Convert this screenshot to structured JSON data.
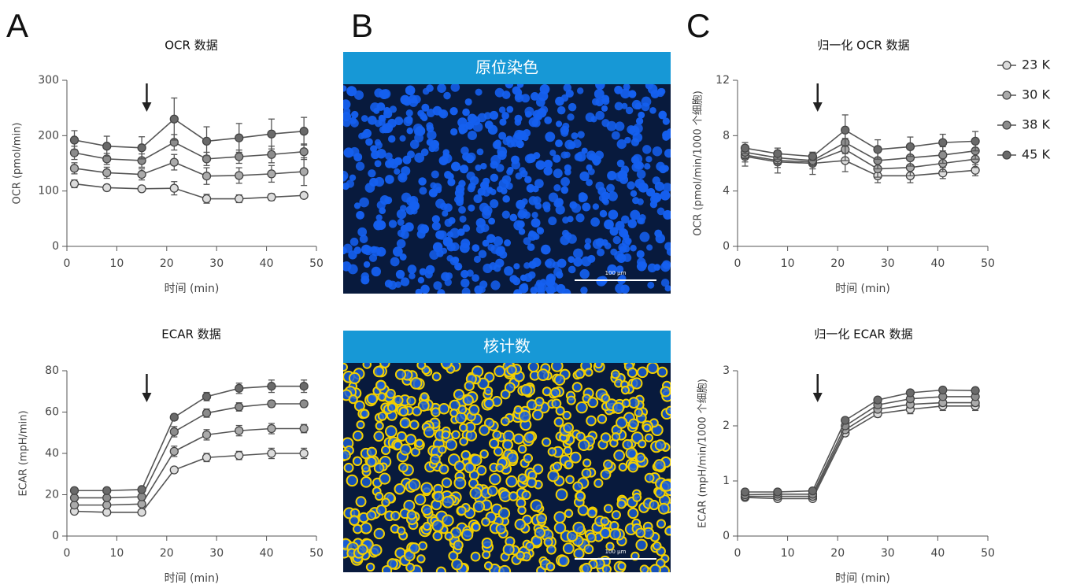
{
  "panels": [
    "A",
    "B",
    "C"
  ],
  "images": [
    {
      "title": "原位染色",
      "scale_bar": "100 μm"
    },
    {
      "title": "核计数",
      "scale_bar": "100 μm"
    }
  ],
  "chart_data": [
    {
      "type": "line",
      "title": "OCR 数据",
      "x_label": "时间 (min)",
      "y_label": "OCR (pmol/min)",
      "x": [
        1.5,
        8,
        15,
        21.5,
        28,
        34.5,
        41,
        47.5
      ],
      "xlim": [
        0,
        50
      ],
      "xticks": [
        0,
        10,
        20,
        30,
        40,
        50
      ],
      "ylim": [
        0,
        300
      ],
      "yticks": [
        0,
        100,
        200,
        300
      ],
      "arrow_x": 16,
      "series": [
        {
          "color": "#dcdcdc",
          "values": [
            113,
            106,
            104,
            105,
            86,
            86,
            89,
            92
          ],
          "errors": [
            7,
            5,
            4,
            12,
            8,
            7,
            6,
            4
          ]
        },
        {
          "color": "#aaaaaa",
          "values": [
            141,
            133,
            130,
            152,
            127,
            128,
            131,
            135
          ],
          "errors": [
            10,
            10,
            10,
            14,
            15,
            14,
            15,
            25
          ]
        },
        {
          "color": "#8c8c8c",
          "values": [
            169,
            158,
            155,
            188,
            158,
            162,
            166,
            171
          ],
          "errors": [
            12,
            10,
            12,
            14,
            12,
            12,
            15,
            14
          ]
        },
        {
          "color": "#6a6a6a",
          "values": [
            192,
            181,
            178,
            230,
            190,
            196,
            203,
            208
          ],
          "errors": [
            17,
            18,
            20,
            38,
            26,
            26,
            27,
            25
          ]
        }
      ]
    },
    {
      "type": "line",
      "title": "ECAR 数据",
      "x_label": "时间 (min)",
      "y_label": "ECAR (mpH/min)",
      "x": [
        1.5,
        8,
        15,
        21.5,
        28,
        34.5,
        41,
        47.5
      ],
      "xlim": [
        0,
        50
      ],
      "xticks": [
        0,
        10,
        20,
        30,
        40,
        50
      ],
      "ylim": [
        0,
        80
      ],
      "yticks": [
        0,
        20,
        40,
        60,
        80
      ],
      "arrow_x": 16,
      "series": [
        {
          "color": "#dcdcdc",
          "values": [
            12,
            11.5,
            11.5,
            32,
            38,
            39,
            40,
            40
          ],
          "errors": [
            1,
            1,
            1,
            1,
            2,
            2,
            2.5,
            2.5
          ]
        },
        {
          "color": "#aaaaaa",
          "values": [
            15,
            15,
            15.5,
            41,
            49,
            51,
            52,
            52
          ],
          "errors": [
            1,
            1,
            1,
            2.5,
            2.5,
            2.5,
            2.5,
            2
          ]
        },
        {
          "color": "#8c8c8c",
          "values": [
            18.5,
            18.5,
            19,
            50.5,
            59.5,
            62.5,
            64,
            64
          ],
          "errors": [
            1,
            1,
            1,
            2.5,
            2,
            2,
            1.5,
            1.5
          ]
        },
        {
          "color": "#6a6a6a",
          "values": [
            22,
            22,
            22.5,
            57.5,
            67.5,
            71.5,
            72.5,
            72.5
          ],
          "errors": [
            1,
            1,
            1,
            1.5,
            2,
            2.5,
            3,
            3
          ]
        }
      ]
    },
    {
      "type": "line",
      "title": "归一化 OCR 数据",
      "x_label": "时间 (min)",
      "y_label": "OCR (pmol/min/1000 个细胞)",
      "x": [
        1.5,
        8,
        15,
        21.5,
        28,
        34.5,
        41,
        47.5
      ],
      "xlim": [
        0,
        50
      ],
      "xticks": [
        0,
        10,
        20,
        30,
        40,
        50
      ],
      "ylim": [
        0,
        12
      ],
      "yticks": [
        0,
        4,
        8,
        12
      ],
      "arrow_x": 16,
      "legend": true,
      "series": [
        {
          "name": "23 K",
          "color": "#dcdcdc",
          "values": [
            6.5,
            6.1,
            6.0,
            6.2,
            5.1,
            5.1,
            5.3,
            5.5
          ],
          "errors": [
            0.7,
            0.8,
            0.8,
            0.8,
            0.5,
            0.5,
            0.4,
            0.4
          ]
        },
        {
          "name": "30 K",
          "color": "#aaaaaa",
          "values": [
            6.6,
            6.2,
            6.1,
            7.0,
            5.6,
            5.7,
            6.0,
            6.3
          ],
          "errors": [
            0.5,
            0.5,
            0.5,
            0.8,
            0.6,
            0.6,
            0.6,
            0.6
          ]
        },
        {
          "name": "38 K",
          "color": "#8c8c8c",
          "values": [
            6.8,
            6.4,
            6.2,
            7.5,
            6.2,
            6.4,
            6.6,
            6.9
          ],
          "errors": [
            0.4,
            0.4,
            0.4,
            0.8,
            0.6,
            0.6,
            0.6,
            0.6
          ]
        },
        {
          "name": "45 K",
          "color": "#6a6a6a",
          "values": [
            7.1,
            6.7,
            6.5,
            8.4,
            7.0,
            7.2,
            7.5,
            7.6
          ],
          "errors": [
            0.4,
            0.4,
            0.3,
            1.1,
            0.7,
            0.7,
            0.6,
            0.7
          ]
        }
      ]
    },
    {
      "type": "line",
      "title": "归一化 ECAR 数据",
      "x_label": "时间 (min)",
      "y_label": "ECAR (mpH/min/1000 个细胞)",
      "x": [
        1.5,
        8,
        15,
        21.5,
        28,
        34.5,
        41,
        47.5
      ],
      "xlim": [
        0,
        50
      ],
      "xticks": [
        0,
        10,
        20,
        30,
        40,
        50
      ],
      "ylim": [
        0,
        3
      ],
      "yticks": [
        0,
        1,
        2,
        3
      ],
      "arrow_x": 16,
      "series": [
        {
          "color": "#dcdcdc",
          "values": [
            0.7,
            0.68,
            0.68,
            1.87,
            2.22,
            2.3,
            2.36,
            2.36
          ],
          "errors": [
            0.04,
            0.04,
            0.04,
            0.05,
            0.06,
            0.08,
            0.08,
            0.08
          ]
        },
        {
          "color": "#aaaaaa",
          "values": [
            0.72,
            0.72,
            0.72,
            1.93,
            2.3,
            2.39,
            2.42,
            2.42
          ],
          "errors": [
            0.04,
            0.04,
            0.04,
            0.05,
            0.05,
            0.06,
            0.06,
            0.06
          ]
        },
        {
          "color": "#8c8c8c",
          "values": [
            0.75,
            0.76,
            0.76,
            2.0,
            2.38,
            2.49,
            2.53,
            2.53
          ],
          "errors": [
            0.03,
            0.03,
            0.03,
            0.05,
            0.05,
            0.05,
            0.05,
            0.05
          ]
        },
        {
          "color": "#6a6a6a",
          "values": [
            0.8,
            0.8,
            0.82,
            2.1,
            2.47,
            2.6,
            2.65,
            2.64
          ],
          "errors": [
            0.03,
            0.03,
            0.03,
            0.05,
            0.05,
            0.05,
            0.05,
            0.05
          ]
        }
      ]
    }
  ]
}
